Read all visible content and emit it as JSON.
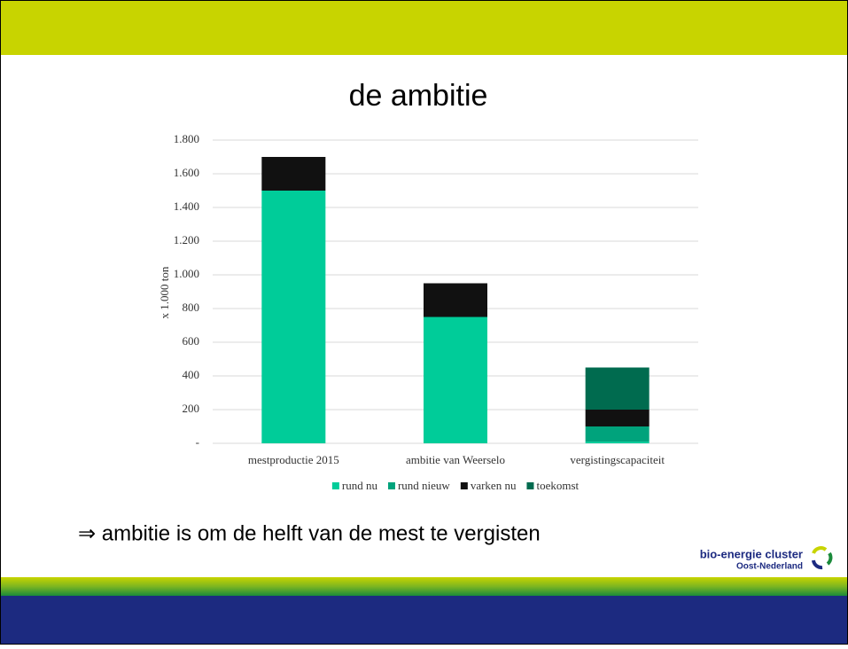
{
  "chart_data": {
    "type": "bar",
    "stacked": true,
    "title": "de ambitie",
    "ylabel": "x 1.000 ton",
    "categories": [
      "mestproductie 2015",
      "ambitie van Weerselo",
      "vergistingscapaciteit"
    ],
    "series": [
      {
        "name": "rund nu",
        "color": "#00cc99",
        "values": [
          1500,
          750,
          10
        ]
      },
      {
        "name": "rund nieuw",
        "color": "#00a37c",
        "values": [
          0,
          0,
          90
        ]
      },
      {
        "name": "varken nu",
        "color": "#111111",
        "values": [
          200,
          200,
          100
        ]
      },
      {
        "name": "toekomst",
        "color": "#006b4f",
        "values": [
          0,
          0,
          250
        ]
      }
    ],
    "ylim": [
      0,
      1800
    ],
    "yticks": [
      {
        "value": 0,
        "label": "-"
      },
      200,
      400,
      600,
      800,
      {
        "value": 1000,
        "label": "1.000"
      },
      {
        "value": 1200,
        "label": "1.200"
      },
      {
        "value": 1400,
        "label": "1.400"
      },
      {
        "value": 1600,
        "label": "1.600"
      },
      {
        "value": 1800,
        "label": "1.800"
      }
    ],
    "grid": true,
    "legend": "bottom"
  },
  "slide": {
    "statement": "⇒ ambitie is om de helft van de mest te vergisten",
    "logo": {
      "name": "bio-energie cluster",
      "region": "Oost-Nederland"
    }
  }
}
